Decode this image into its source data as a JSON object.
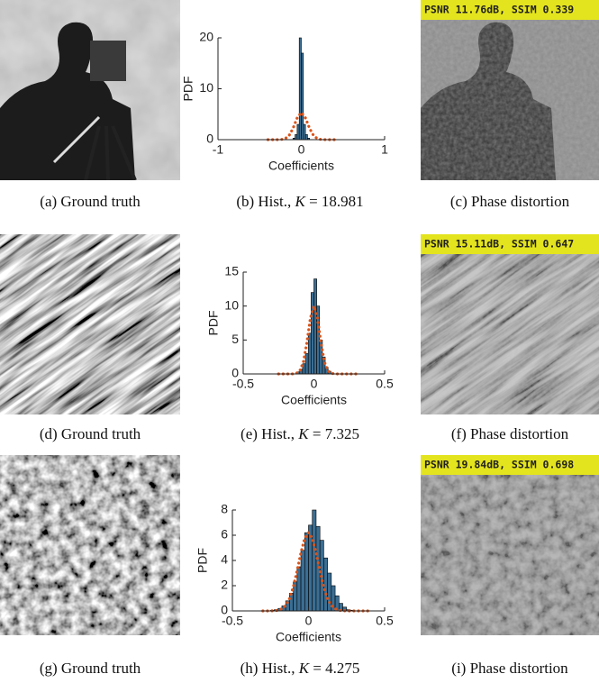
{
  "figure": {
    "rows": [
      {
        "ground_truth_caption": "(a) Ground truth",
        "hist_caption": {
          "prefix": "(b) Hist.,",
          "variable": "K",
          "equation": "= 18.981"
        },
        "phase_caption": "(c) Phase distortion",
        "phase_banner": "PSNR 11.76dB, SSIM 0.339"
      },
      {
        "ground_truth_caption": "(d) Ground truth",
        "hist_caption": {
          "prefix": "(e) Hist.,",
          "variable": "K",
          "equation": "= 7.325"
        },
        "phase_caption": "(f) Phase distortion",
        "phase_banner": "PSNR 15.11dB, SSIM 0.647"
      },
      {
        "ground_truth_caption": "(g) Ground truth",
        "hist_caption": {
          "prefix": "(h) Hist.,",
          "variable": "K",
          "equation": "= 4.275"
        },
        "phase_caption": "(i) Phase distortion",
        "phase_banner": "PSNR 19.84dB, SSIM 0.698"
      }
    ]
  },
  "chart_data": [
    {
      "type": "histogram",
      "xlabel": "Coefficients",
      "ylabel": "PDF",
      "color": "#3b6e93",
      "bins": [
        -0.1,
        -0.075,
        -0.05,
        -0.025,
        0,
        0.025,
        0.05,
        0.075,
        0.1
      ],
      "values": [
        0.3,
        1,
        3,
        20,
        17,
        3,
        1,
        0.3
      ],
      "fit": {
        "color": "#d95319",
        "x": [
          -0.4,
          -0.35,
          -0.3,
          -0.25,
          -0.2,
          -0.15,
          -0.1,
          -0.05,
          0,
          0.05,
          0.1,
          0.15,
          0.2,
          0.25,
          0.3,
          0.35,
          0.4
        ],
        "values": [
          0,
          0,
          0,
          0.02,
          0.15,
          0.72,
          2.19,
          4.26,
          5.32,
          4.26,
          2.19,
          0.72,
          0.15,
          0.02,
          0,
          0,
          0
        ]
      },
      "xlim": [
        -1,
        1
      ],
      "xticks": [
        -1,
        0,
        1
      ],
      "ylim": [
        0,
        20
      ],
      "yticks": [
        0,
        10,
        20
      ]
    },
    {
      "type": "histogram",
      "xlabel": "Coefficients",
      "ylabel": "PDF",
      "color": "#3b6e93",
      "bins": [
        -0.12,
        -0.1,
        -0.08,
        -0.06,
        -0.04,
        -0.02,
        0,
        0.02,
        0.04,
        0.06,
        0.08,
        0.1,
        0.12
      ],
      "values": [
        0.3,
        0.7,
        1.5,
        3,
        6,
        12,
        14,
        10,
        5,
        2.5,
        1,
        0.4
      ],
      "fit": {
        "color": "#d95319",
        "x": [
          -0.25,
          -0.225,
          -0.2,
          -0.175,
          -0.15,
          -0.125,
          -0.1,
          -0.075,
          -0.05,
          -0.025,
          0,
          0.025,
          0.05,
          0.075,
          0.1,
          0.125,
          0.15,
          0.175,
          0.2,
          0.225,
          0.25,
          0.275,
          0.3
        ],
        "values": [
          0,
          0,
          0,
          0,
          0.01,
          0.08,
          0.44,
          1.72,
          4.58,
          8.23,
          10,
          8.23,
          4.58,
          1.72,
          0.44,
          0.08,
          0.01,
          0,
          0,
          0,
          0,
          0,
          0
        ]
      },
      "xlim": [
        -0.5,
        0.5
      ],
      "xticks": [
        -0.5,
        0,
        0.5
      ],
      "ylim": [
        0,
        15
      ],
      "yticks": [
        0,
        5,
        10,
        15
      ]
    },
    {
      "type": "histogram",
      "xlabel": "Coefficients",
      "ylabel": "PDF",
      "color": "#3b6e93",
      "bins": [
        -0.25,
        -0.225,
        -0.2,
        -0.175,
        -0.15,
        -0.125,
        -0.1,
        -0.075,
        -0.05,
        -0.025,
        0,
        0.025,
        0.05,
        0.075,
        0.1,
        0.125,
        0.15,
        0.175,
        0.2,
        0.225,
        0.25,
        0.275,
        0.3
      ],
      "values": [
        0.05,
        0.1,
        0.2,
        0.4,
        0.8,
        1.4,
        2.3,
        3.5,
        4.8,
        6.2,
        6.8,
        8,
        6.7,
        5.6,
        4.2,
        3,
        2,
        1.2,
        0.6,
        0.3,
        0.1,
        0.05
      ],
      "fit": {
        "color": "#d95319",
        "x": [
          -0.3,
          -0.275,
          -0.25,
          -0.225,
          -0.2,
          -0.175,
          -0.15,
          -0.125,
          -0.1,
          -0.075,
          -0.05,
          -0.025,
          0,
          0.025,
          0.05,
          0.075,
          0.1,
          0.125,
          0.15,
          0.175,
          0.2,
          0.225,
          0.25,
          0.275,
          0.3,
          0.325,
          0.35,
          0.375,
          0.4
        ],
        "values": [
          0,
          0,
          0,
          0.02,
          0.05,
          0.17,
          0.43,
          0.97,
          1.9,
          3.19,
          4.6,
          5.76,
          6.2,
          5.76,
          4.6,
          3.19,
          1.9,
          0.97,
          0.43,
          0.17,
          0.05,
          0.02,
          0,
          0,
          0,
          0,
          0,
          0,
          0
        ]
      },
      "xlim": [
        -0.5,
        0.5
      ],
      "xticks": [
        -0.5,
        0,
        0.5
      ],
      "ylim": [
        0,
        8
      ],
      "yticks": [
        0,
        2,
        4,
        6,
        8
      ]
    }
  ]
}
